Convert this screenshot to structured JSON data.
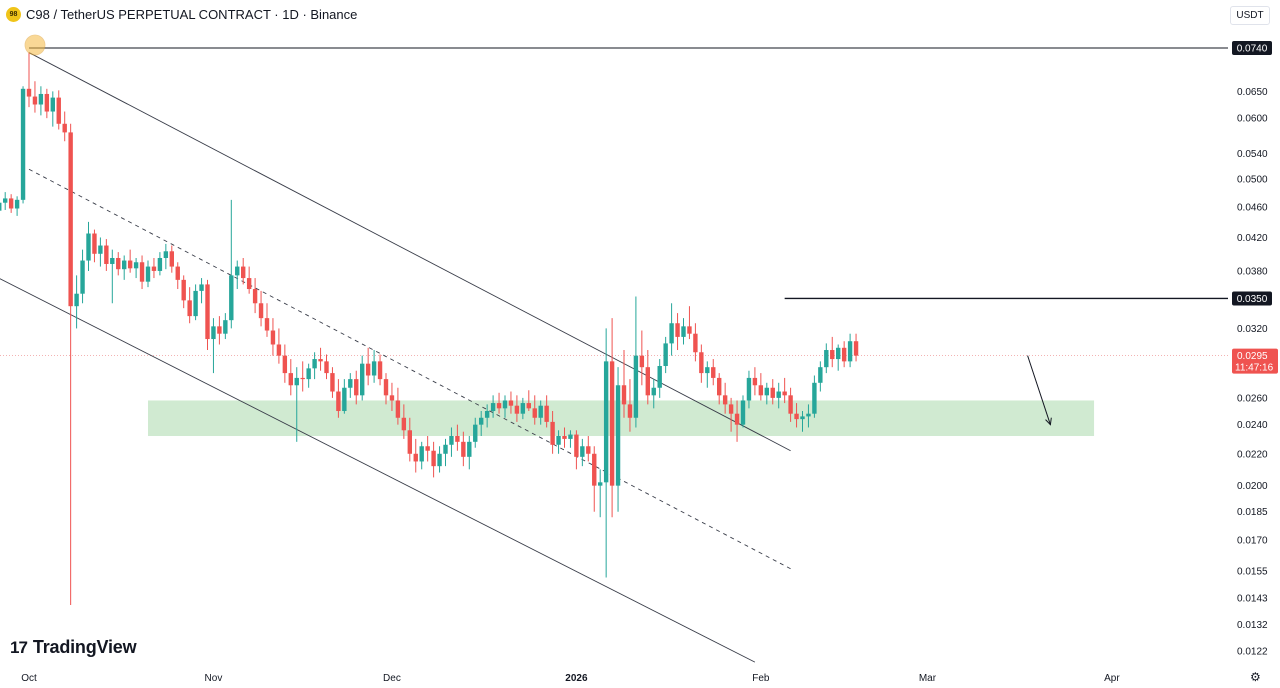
{
  "header": {
    "coin_icon_text": "98",
    "title": "C98 / TetherUS PERPETUAL CONTRACT · 1D · Binance"
  },
  "currency_button": {
    "label": "USDT"
  },
  "branding": {
    "mark": "17",
    "name": "TradingView"
  },
  "colors": {
    "up": "#26a69a",
    "down": "#ef5350",
    "zone": "#c8e6c9",
    "line": "#131722",
    "price_tag": "#ef5350",
    "accent": "#f5b942"
  },
  "chart_data": {
    "type": "candlestick",
    "title": "C98 / TetherUS PERPETUAL CONTRACT · 1D · Binance",
    "y_scale": "log",
    "y_ticks": [
      "0.0740",
      "0.0650",
      "0.0600",
      "0.0540",
      "0.0500",
      "0.0460",
      "0.0420",
      "0.0380",
      "0.0350",
      "0.0320",
      "0.0295",
      "0.0260",
      "0.0240",
      "0.0220",
      "0.0200",
      "0.0185",
      "0.0170",
      "0.0155",
      "0.0143",
      "0.0132",
      "0.0122"
    ],
    "x_ticks": [
      {
        "label": "Oct",
        "date": "2025-10-01"
      },
      {
        "label": "Nov",
        "date": "2025-11-01"
      },
      {
        "label": "Dec",
        "date": "2025-12-01"
      },
      {
        "label": "2026",
        "date": "2026-01-01"
      },
      {
        "label": "Feb",
        "date": "2026-02-01"
      },
      {
        "label": "Mar",
        "date": "2026-03-01"
      },
      {
        "label": "Apr",
        "date": "2026-04-01"
      }
    ],
    "first_candle_date": "2025-09-24",
    "candles": [
      [
        0.0445,
        0.0458,
        0.0432,
        0.0448
      ],
      [
        0.0448,
        0.0462,
        0.0438,
        0.0455
      ],
      [
        0.0455,
        0.0472,
        0.0445,
        0.0466
      ],
      [
        0.0466,
        0.0481,
        0.0456,
        0.0472
      ],
      [
        0.0472,
        0.0478,
        0.0452,
        0.0458
      ],
      [
        0.0458,
        0.0475,
        0.0448,
        0.047
      ],
      [
        0.047,
        0.066,
        0.0465,
        0.0655
      ],
      [
        0.0655,
        0.073,
        0.062,
        0.064
      ],
      [
        0.064,
        0.067,
        0.061,
        0.0625
      ],
      [
        0.0625,
        0.066,
        0.0605,
        0.0645
      ],
      [
        0.0645,
        0.0655,
        0.06,
        0.0612
      ],
      [
        0.0612,
        0.065,
        0.0585,
        0.0638
      ],
      [
        0.0638,
        0.0652,
        0.058,
        0.059
      ],
      [
        0.059,
        0.0612,
        0.056,
        0.0575
      ],
      [
        0.0575,
        0.059,
        0.014,
        0.0342
      ],
      [
        0.0342,
        0.0375,
        0.032,
        0.0355
      ],
      [
        0.0355,
        0.0405,
        0.0345,
        0.0392
      ],
      [
        0.0392,
        0.044,
        0.038,
        0.0425
      ],
      [
        0.0425,
        0.043,
        0.039,
        0.04
      ],
      [
        0.04,
        0.042,
        0.0385,
        0.041
      ],
      [
        0.041,
        0.0418,
        0.038,
        0.0388
      ],
      [
        0.0388,
        0.0405,
        0.0345,
        0.0395
      ],
      [
        0.0395,
        0.0402,
        0.0375,
        0.0382
      ],
      [
        0.0382,
        0.0398,
        0.037,
        0.0392
      ],
      [
        0.0392,
        0.0405,
        0.0378,
        0.0383
      ],
      [
        0.0383,
        0.0395,
        0.0372,
        0.039
      ],
      [
        0.039,
        0.0398,
        0.036,
        0.0368
      ],
      [
        0.0368,
        0.0392,
        0.0362,
        0.0385
      ],
      [
        0.0385,
        0.0395,
        0.0372,
        0.038
      ],
      [
        0.038,
        0.0402,
        0.0375,
        0.0395
      ],
      [
        0.0395,
        0.0412,
        0.0382,
        0.0403
      ],
      [
        0.0403,
        0.041,
        0.0378,
        0.0385
      ],
      [
        0.0385,
        0.039,
        0.036,
        0.037
      ],
      [
        0.037,
        0.0375,
        0.034,
        0.0348
      ],
      [
        0.0348,
        0.0362,
        0.0325,
        0.0332
      ],
      [
        0.0332,
        0.0365,
        0.0328,
        0.0358
      ],
      [
        0.0358,
        0.0372,
        0.0345,
        0.0365
      ],
      [
        0.0365,
        0.037,
        0.03,
        0.031
      ],
      [
        0.031,
        0.033,
        0.028,
        0.0322
      ],
      [
        0.0322,
        0.0332,
        0.0305,
        0.0315
      ],
      [
        0.0315,
        0.0335,
        0.031,
        0.0328
      ],
      [
        0.0328,
        0.047,
        0.032,
        0.0375
      ],
      [
        0.0375,
        0.0392,
        0.036,
        0.0385
      ],
      [
        0.0385,
        0.0395,
        0.0365,
        0.0372
      ],
      [
        0.0372,
        0.0385,
        0.0355,
        0.036
      ],
      [
        0.036,
        0.0372,
        0.0335,
        0.0345
      ],
      [
        0.0345,
        0.0358,
        0.0322,
        0.033
      ],
      [
        0.033,
        0.0345,
        0.0312,
        0.0318
      ],
      [
        0.0318,
        0.033,
        0.0295,
        0.0305
      ],
      [
        0.0305,
        0.032,
        0.0288,
        0.0295
      ],
      [
        0.0295,
        0.0305,
        0.0272,
        0.028
      ],
      [
        0.028,
        0.0292,
        0.0262,
        0.027
      ],
      [
        0.027,
        0.0285,
        0.0228,
        0.0276
      ],
      [
        0.0276,
        0.029,
        0.0265,
        0.0275
      ],
      [
        0.0275,
        0.0288,
        0.0268,
        0.0284
      ],
      [
        0.0284,
        0.0298,
        0.0275,
        0.0292
      ],
      [
        0.0292,
        0.0302,
        0.0282,
        0.029
      ],
      [
        0.029,
        0.0296,
        0.0275,
        0.028
      ],
      [
        0.028,
        0.0285,
        0.026,
        0.0265
      ],
      [
        0.0265,
        0.0275,
        0.0245,
        0.025
      ],
      [
        0.025,
        0.0275,
        0.0248,
        0.0268
      ],
      [
        0.0268,
        0.028,
        0.026,
        0.0275
      ],
      [
        0.0275,
        0.0282,
        0.0255,
        0.0262
      ],
      [
        0.0262,
        0.0295,
        0.0258,
        0.0288
      ],
      [
        0.0288,
        0.0302,
        0.027,
        0.0278
      ],
      [
        0.0278,
        0.03,
        0.0272,
        0.029
      ],
      [
        0.029,
        0.0296,
        0.027,
        0.0275
      ],
      [
        0.0275,
        0.028,
        0.0255,
        0.0262
      ],
      [
        0.0262,
        0.0272,
        0.025,
        0.0258
      ],
      [
        0.0258,
        0.0268,
        0.024,
        0.0245
      ],
      [
        0.0245,
        0.0255,
        0.023,
        0.0236
      ],
      [
        0.0236,
        0.0245,
        0.0215,
        0.022
      ],
      [
        0.022,
        0.023,
        0.0208,
        0.0215
      ],
      [
        0.0215,
        0.0228,
        0.021,
        0.0225
      ],
      [
        0.0225,
        0.0232,
        0.0215,
        0.0222
      ],
      [
        0.0222,
        0.0228,
        0.0205,
        0.0212
      ],
      [
        0.0212,
        0.0225,
        0.0208,
        0.022
      ],
      [
        0.022,
        0.023,
        0.0212,
        0.0226
      ],
      [
        0.0226,
        0.0238,
        0.0218,
        0.0232
      ],
      [
        0.0232,
        0.024,
        0.0222,
        0.0228
      ],
      [
        0.0228,
        0.0235,
        0.0212,
        0.0218
      ],
      [
        0.0218,
        0.0232,
        0.021,
        0.0228
      ],
      [
        0.0228,
        0.0245,
        0.0224,
        0.024
      ],
      [
        0.024,
        0.025,
        0.0232,
        0.0245
      ],
      [
        0.0245,
        0.0255,
        0.0238,
        0.025
      ],
      [
        0.025,
        0.0262,
        0.0245,
        0.0256
      ],
      [
        0.0256,
        0.0264,
        0.0248,
        0.0252
      ],
      [
        0.0252,
        0.0262,
        0.0245,
        0.0258
      ],
      [
        0.0258,
        0.0265,
        0.0248,
        0.0254
      ],
      [
        0.0254,
        0.0262,
        0.0242,
        0.0248
      ],
      [
        0.0248,
        0.026,
        0.0244,
        0.0256
      ],
      [
        0.0256,
        0.0266,
        0.025,
        0.0252
      ],
      [
        0.0252,
        0.0262,
        0.024,
        0.0245
      ],
      [
        0.0245,
        0.0258,
        0.024,
        0.0254
      ],
      [
        0.0254,
        0.0262,
        0.0238,
        0.0242
      ],
      [
        0.0242,
        0.025,
        0.022,
        0.0226
      ],
      [
        0.0226,
        0.0236,
        0.022,
        0.0232
      ],
      [
        0.0232,
        0.0238,
        0.0224,
        0.023
      ],
      [
        0.023,
        0.0236,
        0.0224,
        0.0233
      ],
      [
        0.0233,
        0.0236,
        0.021,
        0.0218
      ],
      [
        0.0218,
        0.023,
        0.0212,
        0.0225
      ],
      [
        0.0225,
        0.0232,
        0.0215,
        0.022
      ],
      [
        0.022,
        0.0225,
        0.0185,
        0.02
      ],
      [
        0.02,
        0.021,
        0.0182,
        0.0202
      ],
      [
        0.0202,
        0.032,
        0.0152,
        0.029
      ],
      [
        0.029,
        0.033,
        0.0182,
        0.02
      ],
      [
        0.02,
        0.0285,
        0.0185,
        0.027
      ],
      [
        0.027,
        0.03,
        0.0245,
        0.0255
      ],
      [
        0.0255,
        0.0275,
        0.0235,
        0.0245
      ],
      [
        0.0245,
        0.0352,
        0.0238,
        0.0295
      ],
      [
        0.0295,
        0.0318,
        0.027,
        0.0285
      ],
      [
        0.0285,
        0.03,
        0.0255,
        0.0262
      ],
      [
        0.0262,
        0.0275,
        0.0252,
        0.0268
      ],
      [
        0.0268,
        0.0292,
        0.026,
        0.0286
      ],
      [
        0.0286,
        0.0312,
        0.028,
        0.0306
      ],
      [
        0.0306,
        0.0345,
        0.0295,
        0.0325
      ],
      [
        0.0325,
        0.0335,
        0.03,
        0.0312
      ],
      [
        0.0312,
        0.033,
        0.0305,
        0.0322
      ],
      [
        0.0322,
        0.0342,
        0.031,
        0.0315
      ],
      [
        0.0315,
        0.0325,
        0.029,
        0.0298
      ],
      [
        0.0298,
        0.0305,
        0.0272,
        0.028
      ],
      [
        0.028,
        0.029,
        0.0268,
        0.0285
      ],
      [
        0.0285,
        0.0292,
        0.027,
        0.0276
      ],
      [
        0.0276,
        0.028,
        0.0255,
        0.0262
      ],
      [
        0.0262,
        0.0272,
        0.0248,
        0.0255
      ],
      [
        0.0255,
        0.026,
        0.0235,
        0.0248
      ],
      [
        0.0248,
        0.0258,
        0.0228,
        0.024
      ],
      [
        0.024,
        0.0262,
        0.0238,
        0.0258
      ],
      [
        0.0258,
        0.0282,
        0.0252,
        0.0276
      ],
      [
        0.0276,
        0.0285,
        0.0262,
        0.027
      ],
      [
        0.027,
        0.028,
        0.0258,
        0.0262
      ],
      [
        0.0262,
        0.0272,
        0.0255,
        0.0268
      ],
      [
        0.0268,
        0.0275,
        0.0255,
        0.026
      ],
      [
        0.026,
        0.0272,
        0.0252,
        0.0265
      ],
      [
        0.0265,
        0.0276,
        0.0256,
        0.0262
      ],
      [
        0.0262,
        0.0268,
        0.0242,
        0.0248
      ],
      [
        0.0248,
        0.0256,
        0.0238,
        0.0244
      ],
      [
        0.0244,
        0.025,
        0.0235,
        0.0246
      ],
      [
        0.0246,
        0.0255,
        0.0238,
        0.0248
      ],
      [
        0.0248,
        0.0278,
        0.0245,
        0.0272
      ],
      [
        0.0272,
        0.029,
        0.0265,
        0.0285
      ],
      [
        0.0285,
        0.0306,
        0.028,
        0.03
      ],
      [
        0.03,
        0.0312,
        0.0285,
        0.0292
      ],
      [
        0.0292,
        0.0305,
        0.0282,
        0.0302
      ],
      [
        0.0302,
        0.0308,
        0.0285,
        0.029
      ],
      [
        0.029,
        0.0315,
        0.0285,
        0.0308
      ],
      [
        0.0308,
        0.0315,
        0.029,
        0.0295
      ]
    ],
    "horizontal_lines": [
      {
        "price": 0.074,
        "label": "0.0740",
        "start_date": "2025-10-01"
      },
      {
        "price": 0.035,
        "label": "0.0350",
        "start_date": "2026-02-05"
      }
    ],
    "zone": {
      "from": 0.0232,
      "to": 0.0258,
      "start_date": "2025-10-21",
      "end_date": "2026-03-29"
    },
    "trend_lines": [
      {
        "style": "solid",
        "from": {
          "date": "2025-10-01",
          "price": 0.073
        },
        "to": {
          "date": "2026-02-06",
          "price": 0.0222
        }
      },
      {
        "style": "solid",
        "from": {
          "date": "2025-09-25",
          "price": 0.0375
        },
        "to": {
          "date": "2026-01-31",
          "price": 0.0118
        }
      },
      {
        "style": "dashed",
        "from": {
          "date": "2025-10-01",
          "price": 0.0515
        },
        "to": {
          "date": "2026-02-06",
          "price": 0.0156
        }
      }
    ],
    "projection_arrow": {
      "from": {
        "date": "2026-03-18",
        "price": 0.0295
      },
      "to": {
        "date": "2026-03-22",
        "price": 0.024
      }
    },
    "highlight_point": {
      "date": "2025-10-01",
      "price": 0.074
    },
    "current_price": {
      "label": "0.0295",
      "price": 0.0295,
      "countdown": "11:47:16"
    }
  }
}
